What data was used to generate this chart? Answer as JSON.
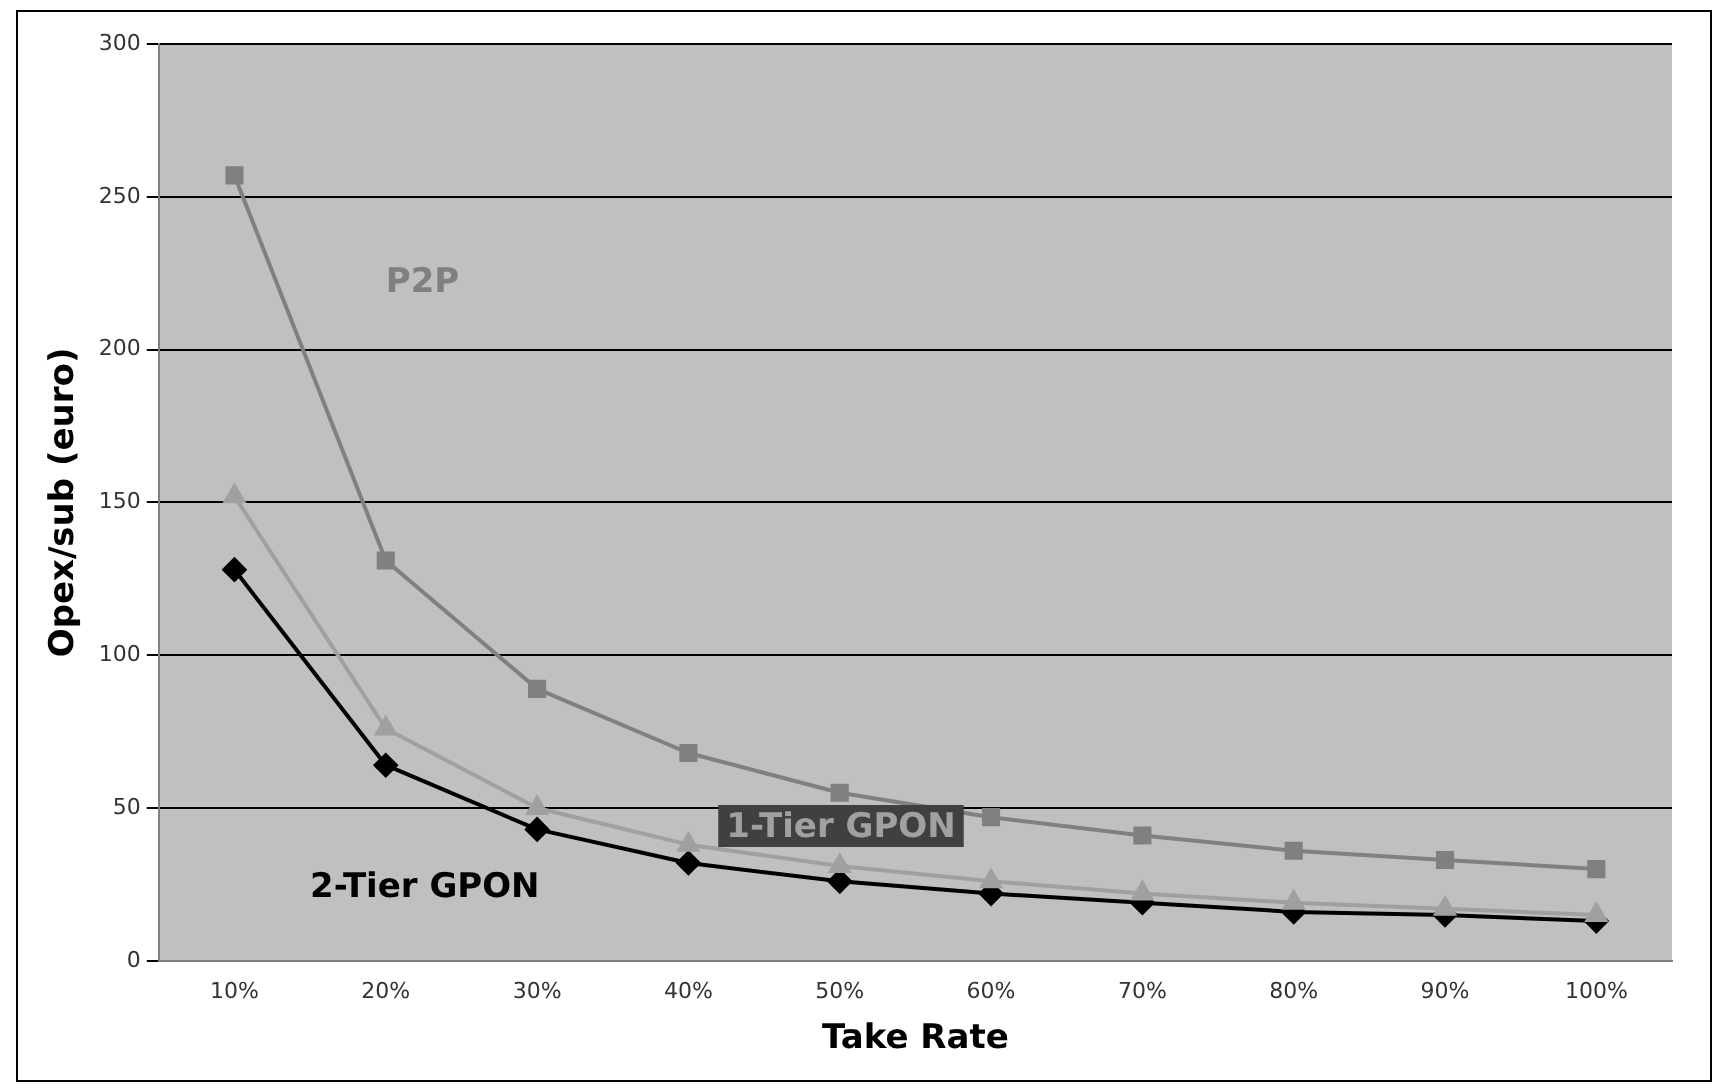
{
  "chart_data": {
    "type": "line",
    "xlabel": "Take Rate",
    "ylabel": "Opex/sub (euro)",
    "categories": [
      "10%",
      "20%",
      "30%",
      "40%",
      "50%",
      "60%",
      "70%",
      "80%",
      "90%",
      "100%"
    ],
    "series": [
      {
        "name": "P2P",
        "color": "#808080",
        "marker": "square",
        "values": [
          257,
          131,
          89,
          68,
          55,
          47,
          41,
          36,
          33,
          30
        ]
      },
      {
        "name": "1-Tier GPON",
        "color": "#a0a0a0",
        "marker": "triangle",
        "values": [
          152,
          76,
          50,
          38,
          31,
          26,
          22,
          19,
          17,
          15
        ]
      },
      {
        "name": "2-Tier GPON",
        "color": "#000000",
        "marker": "diamond",
        "values": [
          128,
          64,
          43,
          32,
          26,
          22,
          19,
          16,
          15,
          13
        ]
      }
    ],
    "ylim": [
      0,
      300
    ],
    "yticks": [
      0,
      50,
      100,
      150,
      200,
      250,
      300
    ],
    "grid": "y",
    "legend": false,
    "line_style": "solid"
  }
}
